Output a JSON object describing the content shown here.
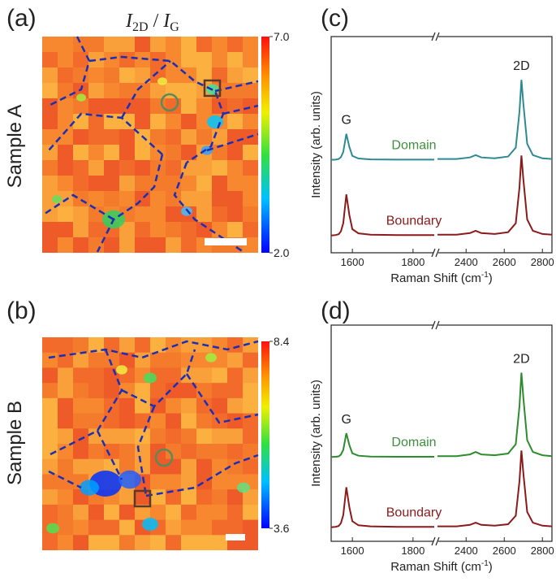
{
  "panel_labels": [
    "(a)",
    "(b)",
    "(c)",
    "(d)"
  ],
  "row_labels": [
    "Sample A",
    "Sample B"
  ],
  "map_title": [
    "I",
    "2D",
    "/",
    "I",
    "G"
  ],
  "colorbars": [
    {
      "ticks": [
        {
          "value": 7,
          "label": "7.0"
        },
        {
          "value": 2,
          "label": "2.0"
        }
      ]
    },
    {
      "ticks": [
        {
          "value": 8.4,
          "label": "8.4"
        },
        {
          "value": 3.6,
          "label": "3.6"
        }
      ]
    }
  ],
  "chart_data": [
    {
      "type": "line",
      "ylabel": "Intensity (arb. units)",
      "xlabel": "Raman Shift (cm",
      "xlabel_sup": "-1",
      "xlabel_end": ")",
      "xlim": [
        1530,
        2850
      ],
      "xbreak": [
        1870,
        2250
      ],
      "xticks": [
        1600,
        1800,
        2400,
        2600,
        2800
      ],
      "ylim": [
        0,
        10
      ],
      "annotations": [
        "G",
        "2D"
      ],
      "x": [
        1530,
        1545,
        1555,
        1562,
        1570,
        1580,
        1590,
        1600,
        1620,
        1660,
        1750,
        1870,
        2250,
        2350,
        2420,
        2450,
        2480,
        2550,
        2620,
        2660,
        2680,
        2690,
        2700,
        2720,
        2750,
        2800,
        2850
      ],
      "series": [
        {
          "name": "Domain",
          "color": "#2e8a92",
          "label_color": "#3f8f3f",
          "values": [
            4.3,
            4.31,
            4.34,
            4.42,
            4.66,
            5.5,
            4.9,
            4.48,
            4.36,
            4.32,
            4.31,
            4.31,
            4.34,
            4.34,
            4.41,
            4.52,
            4.41,
            4.37,
            4.45,
            4.86,
            6.52,
            8.0,
            6.89,
            5.04,
            4.52,
            4.37,
            4.34
          ]
        },
        {
          "name": "Boundary",
          "color": "#8b1a1a",
          "label_color": "#8b1a1a",
          "values": [
            0.8,
            0.82,
            0.86,
            0.99,
            1.37,
            2.7,
            1.75,
            1.09,
            0.9,
            0.84,
            0.82,
            0.82,
            0.84,
            0.84,
            0.91,
            1.02,
            0.91,
            0.87,
            0.95,
            1.36,
            3.02,
            4.5,
            3.39,
            1.54,
            1.02,
            0.87,
            0.84
          ]
        }
      ]
    },
    {
      "type": "line",
      "ylabel": "Intensity (arb. units)",
      "xlabel": "Raman Shift (cm",
      "xlabel_sup": "-1",
      "xlabel_end": ")",
      "xlim": [
        1530,
        2850
      ],
      "xbreak": [
        1870,
        2250
      ],
      "xticks": [
        1600,
        1800,
        2400,
        2600,
        2800
      ],
      "ylim": [
        0,
        10
      ],
      "annotations": [
        "G",
        "2D"
      ],
      "x": [
        1530,
        1545,
        1555,
        1562,
        1570,
        1580,
        1590,
        1600,
        1620,
        1660,
        1750,
        1870,
        2250,
        2350,
        2420,
        2450,
        2480,
        2550,
        2620,
        2660,
        2680,
        2690,
        2700,
        2720,
        2750,
        2800,
        2850
      ],
      "series": [
        {
          "name": "Domain",
          "color": "#2e8b2e",
          "label_color": "#3f8f3f",
          "values": [
            3.9,
            3.91,
            3.93,
            4.01,
            4.23,
            5.0,
            4.45,
            4.07,
            3.96,
            3.92,
            3.91,
            3.91,
            3.94,
            3.94,
            4.02,
            4.13,
            4.02,
            3.98,
            4.06,
            4.49,
            6.24,
            7.8,
            6.63,
            4.68,
            4.13,
            3.98,
            3.94
          ]
        },
        {
          "name": "Boundary",
          "color": "#8b1a1a",
          "label_color": "#8b1a1a",
          "values": [
            0.65,
            0.67,
            0.71,
            0.84,
            1.21,
            2.5,
            1.58,
            0.93,
            0.74,
            0.69,
            0.67,
            0.67,
            0.69,
            0.69,
            0.76,
            0.86,
            0.76,
            0.72,
            0.79,
            1.18,
            2.78,
            4.2,
            3.14,
            1.36,
            0.86,
            0.72,
            0.69
          ]
        }
      ]
    }
  ]
}
